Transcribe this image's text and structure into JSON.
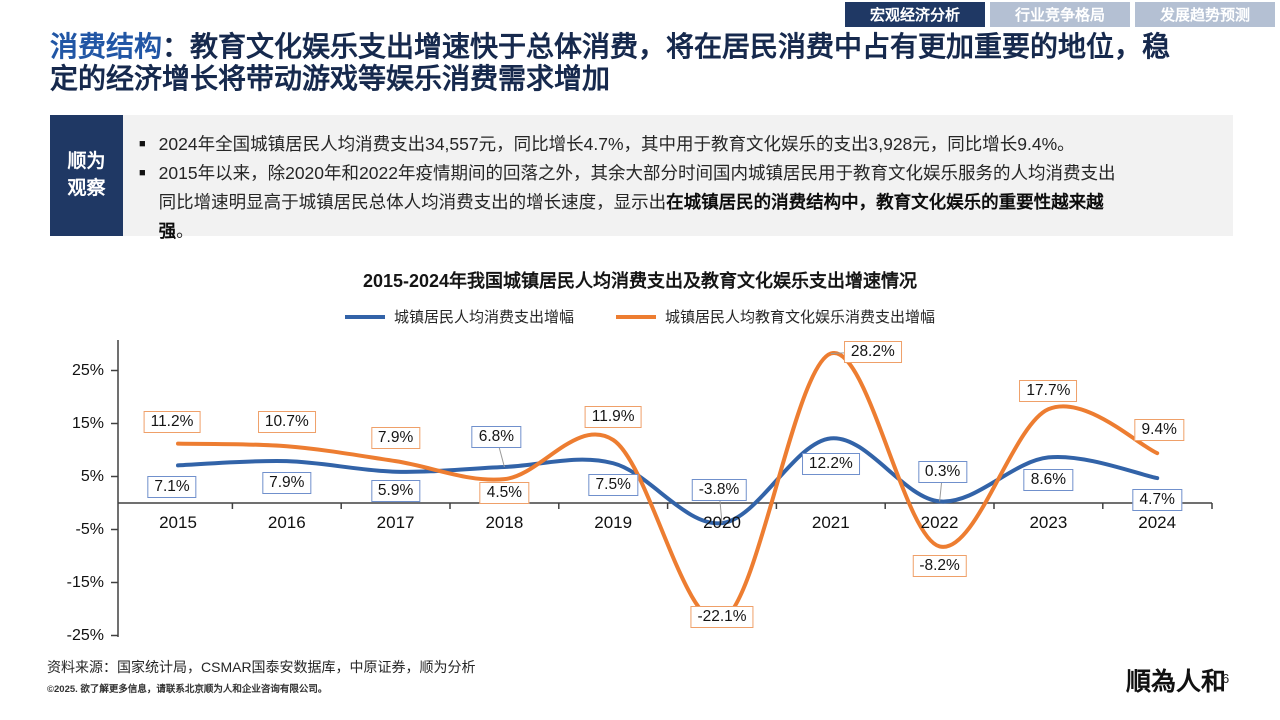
{
  "tabs": [
    {
      "label": "宏观经济分析",
      "active": true
    },
    {
      "label": "行业竞争格局",
      "active": false
    },
    {
      "label": "发展趋势预测",
      "active": false
    }
  ],
  "title": {
    "prefix": "消费结构",
    "rest": "：教育文化娱乐支出增速快于总体消费，将在居民消费中占有更加重要的地位，稳定的经济增长将带动游戏等娱乐消费需求增加"
  },
  "observation": {
    "label_line1": "顺为",
    "label_line2": "观察",
    "marker": "■",
    "bullets": [
      {
        "pre": "2024年全国城镇居民人均消费支出34,557元，同比增长4.7%，其中用于教育文化娱乐的支出3,928元，同比增长9.4%。",
        "bold": "",
        "post": ""
      },
      {
        "pre": "2015年以来，除2020年和2022年疫情期间的回落之外，其余大部分时间国内城镇居民用于教育文化娱乐服务的人均消费支出同比增速明显高于城镇居民总体人均消费支出的增长速度，显示出",
        "bold": "在城镇居民的消费结构中，教育文化娱乐的重要性越来越强",
        "post": "。"
      }
    ]
  },
  "chart_data": {
    "type": "line",
    "title": "2015-2024年我国城镇居民人均消费支出及教育文化娱乐支出增速情况",
    "categories": [
      "2015",
      "2016",
      "2017",
      "2018",
      "2019",
      "2020",
      "2021",
      "2022",
      "2023",
      "2024"
    ],
    "series": [
      {
        "name": "城镇居民人均消费支出增幅",
        "color": "#3263A8",
        "label_border": "#7090CC",
        "values": [
          7.1,
          7.9,
          5.9,
          6.8,
          7.5,
          -3.8,
          12.2,
          0.3,
          8.6,
          4.7
        ],
        "labels": [
          "7.1%",
          "7.9%",
          "5.9%",
          "6.8%",
          "7.5%",
          "-3.8%",
          "12.2%",
          "0.3%",
          "8.6%",
          "4.7%"
        ]
      },
      {
        "name": "城镇居民人均教育文化娱乐消费支出增幅",
        "color": "#ED7D31",
        "label_border": "#EFA069",
        "values": [
          11.2,
          10.7,
          7.9,
          4.5,
          11.9,
          -22.1,
          28.2,
          -8.2,
          17.7,
          9.4
        ],
        "labels": [
          "11.2%",
          "10.7%",
          "7.9%",
          "4.5%",
          "11.9%",
          "-22.1%",
          "28.2%",
          "-8.2%",
          "17.7%",
          "9.4%"
        ]
      }
    ],
    "y_ticks": [
      {
        "label": "25%",
        "value": 25
      },
      {
        "label": "15%",
        "value": 15
      },
      {
        "label": "5%",
        "value": 5
      },
      {
        "label": "-5%",
        "value": -5
      },
      {
        "label": "-15%",
        "value": -15
      },
      {
        "label": "-25%",
        "value": -25
      }
    ],
    "ylim": [
      -27,
      31
    ],
    "xlabel": "",
    "ylabel": "",
    "grid": false,
    "smooth": true,
    "legend_position": "top"
  },
  "footer": {
    "source": "资料来源：国家统计局，CSMAR国泰安数据库，中原证券，顺为分析",
    "copyright": "©2025. 欲了解更多信息，请联系北京顺为人和企业咨询有限公司。",
    "logo": "順為人和",
    "page": "6"
  },
  "colors": {
    "navy": "#1F3864",
    "tab_inactive": "#B4C0D3",
    "title_blue": "#2156A5",
    "panel_gray": "#F2F2F2",
    "axis": "#404040"
  }
}
